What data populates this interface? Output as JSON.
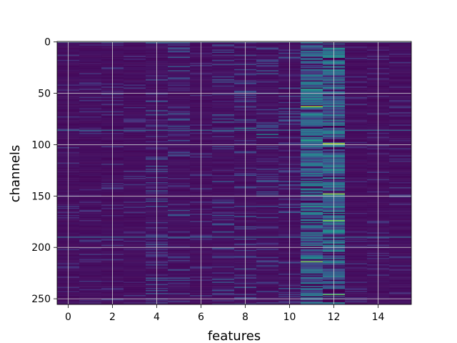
{
  "chart_data": {
    "type": "heatmap",
    "title": "",
    "xlabel": "features",
    "ylabel": "channels",
    "n_features": 16,
    "n_channels": 256,
    "xlim": [
      -0.5,
      15.5
    ],
    "ylim": [
      255.5,
      -0.5
    ],
    "xticks": [
      0,
      2,
      4,
      6,
      8,
      10,
      12,
      14
    ],
    "yticks": [
      0,
      50,
      100,
      150,
      200,
      250
    ],
    "grid": true,
    "colormap": "viridis",
    "value_range": [
      0,
      1
    ],
    "column_profiles": {
      "baseline": 0.04,
      "dense_columns": [
        11,
        12
      ],
      "dense_column_level": 0.3,
      "moderate_columns": [
        4,
        5,
        7,
        8,
        9,
        10
      ],
      "moderate_column_level": 0.12
    },
    "highlights": [
      {
        "feature": 11,
        "channel": 63,
        "value": 0.85
      },
      {
        "feature": 11,
        "channel": 46,
        "value": 0.55
      },
      {
        "feature": 11,
        "channel": 96,
        "value": 0.6
      },
      {
        "feature": 11,
        "channel": 160,
        "value": 0.55
      },
      {
        "feature": 11,
        "channel": 214,
        "value": 0.8
      },
      {
        "feature": 12,
        "channel": 99,
        "value": 0.9
      },
      {
        "feature": 12,
        "channel": 148,
        "value": 0.85
      },
      {
        "feature": 12,
        "channel": 174,
        "value": 0.8
      },
      {
        "feature": 12,
        "channel": 246,
        "value": 0.75
      },
      {
        "feature": 12,
        "channel": 89,
        "value": 0.5
      },
      {
        "feature": 9,
        "channel": 90,
        "value": 0.45
      },
      {
        "feature": 8,
        "channel": 84,
        "value": 0.4
      }
    ],
    "uniform_rows": [
      {
        "channel": 0,
        "value": 0.45
      },
      {
        "channel": 86,
        "value": 0.3
      },
      {
        "channel": 190,
        "value": 0.3
      }
    ]
  }
}
